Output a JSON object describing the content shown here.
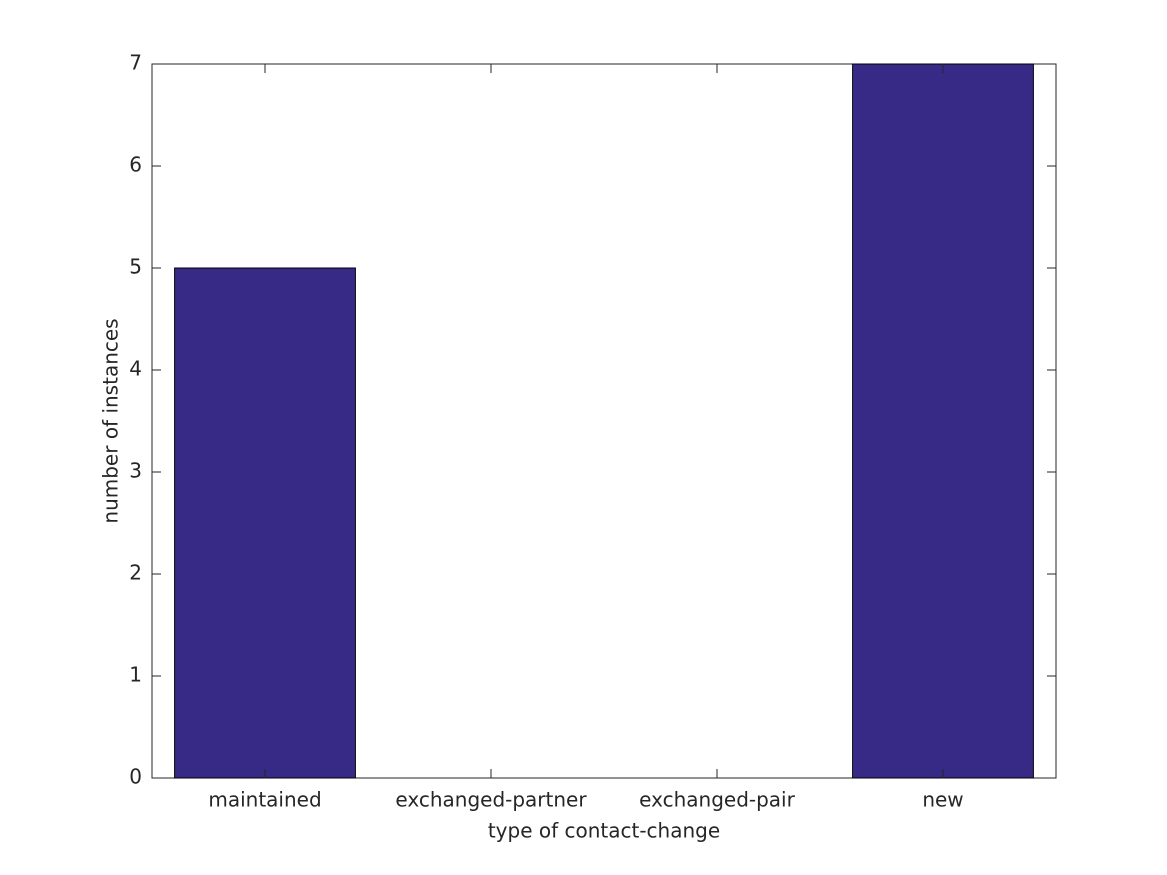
{
  "chart_data": {
    "type": "bar",
    "x_label": "type of contact-change",
    "y_label": "number of instances",
    "categories": [
      "maintained",
      "exchanged-partner",
      "exchanged-pair",
      "new"
    ],
    "values": [
      5,
      0,
      0,
      7
    ],
    "color": "#372a87",
    "ylim": [
      0,
      7
    ],
    "yticks": [
      0,
      1,
      2,
      3,
      4,
      5,
      6,
      7
    ],
    "grid": false
  }
}
